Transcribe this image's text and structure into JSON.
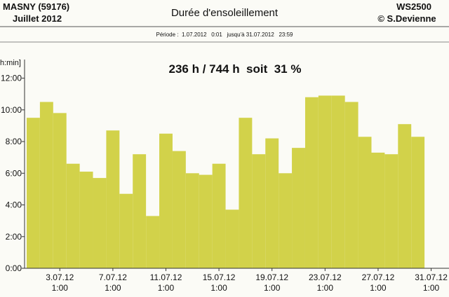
{
  "header": {
    "station": "MASNY (59176)",
    "month": "Juillet  2012",
    "title": "Durée d'ensoleillement",
    "device": "WS2500",
    "author": "© S.Devienne",
    "period": "Période :  1.07.2012   0:01   jusqu'à 31.07.2012   23:59"
  },
  "chart_data": {
    "type": "bar",
    "annotation": "236 h / 744 h  soit  31 %",
    "y_label": "h:min]",
    "color": "#d2d24a",
    "x": [
      1,
      2,
      3,
      4,
      5,
      6,
      7,
      8,
      9,
      10,
      11,
      12,
      13,
      14,
      15,
      16,
      17,
      18,
      19,
      20,
      21,
      22,
      23,
      24,
      25,
      26,
      27,
      28,
      29,
      30
    ],
    "values": [
      9.5,
      10.5,
      9.8,
      6.6,
      6.1,
      5.7,
      8.7,
      4.7,
      7.2,
      3.3,
      8.5,
      7.4,
      6.0,
      5.9,
      6.6,
      3.7,
      9.5,
      7.2,
      8.2,
      6.0,
      7.6,
      10.8,
      10.9,
      10.9,
      10.5,
      8.3,
      7.3,
      7.2,
      9.1,
      8.3
    ],
    "xlim": [
      0.5,
      31.5
    ],
    "xticks": [
      {
        "value": 3,
        "label": "3.07.12\n1:00"
      },
      {
        "value": 7,
        "label": "7.07.12\n1:00"
      },
      {
        "value": 11,
        "label": "11.07.12\n1:00"
      },
      {
        "value": 15,
        "label": "15.07.12\n1:00"
      },
      {
        "value": 19,
        "label": "19.07.12\n1:00"
      },
      {
        "value": 23,
        "label": "23.07.12\n1:00"
      },
      {
        "value": 27,
        "label": "27.07.12\n1:00"
      },
      {
        "value": 31,
        "label": "31.07.12\n1:00"
      }
    ],
    "ylim": [
      0,
      13
    ],
    "yticks": [
      {
        "value": 0,
        "label": "0:00"
      },
      {
        "value": 2,
        "label": "2:00"
      },
      {
        "value": 4,
        "label": "4:00"
      },
      {
        "value": 6,
        "label": "6:00"
      },
      {
        "value": 8,
        "label": "8:00"
      },
      {
        "value": 10,
        "label": "10:00"
      },
      {
        "value": 12,
        "label": "12:00"
      }
    ]
  }
}
